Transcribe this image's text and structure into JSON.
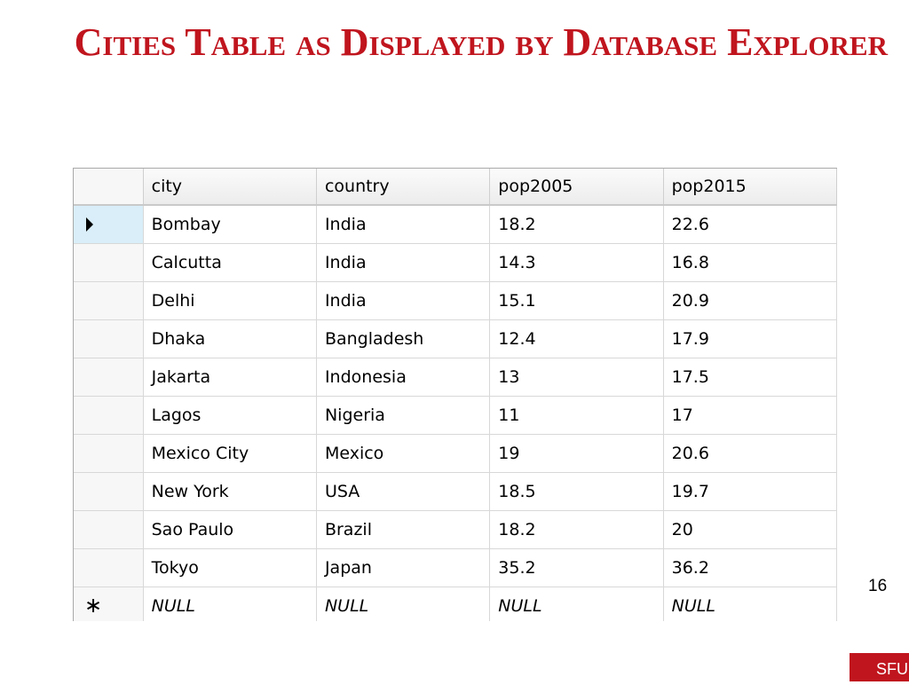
{
  "title": "Cities Table as Displayed by Database Explorer",
  "table": {
    "columns": [
      "city",
      "country",
      "pop2005",
      "pop2015"
    ],
    "rows": [
      [
        "Bombay",
        "India",
        "18.2",
        "22.6"
      ],
      [
        "Calcutta",
        "India",
        "14.3",
        "16.8"
      ],
      [
        "Delhi",
        "India",
        "15.1",
        "20.9"
      ],
      [
        "Dhaka",
        "Bangladesh",
        "12.4",
        "17.9"
      ],
      [
        "Jakarta",
        "Indonesia",
        "13",
        "17.5"
      ],
      [
        "Lagos",
        "Nigeria",
        "11",
        "17"
      ],
      [
        "Mexico City",
        "Mexico",
        "19",
        "20.6"
      ],
      [
        "New York",
        "USA",
        "18.5",
        "19.7"
      ],
      [
        "Sao Paulo",
        "Brazil",
        "18.2",
        "20"
      ],
      [
        "Tokyo",
        "Japan",
        "35.2",
        "36.2"
      ]
    ],
    "new_row": [
      "NULL",
      "NULL",
      "NULL",
      "NULL"
    ],
    "current_row_icon": "row-pointer-icon",
    "new_row_icon": "new-row-asterisk-icon",
    "new_row_marker": "∗"
  },
  "page_number": "16",
  "logo_text": "SFU"
}
